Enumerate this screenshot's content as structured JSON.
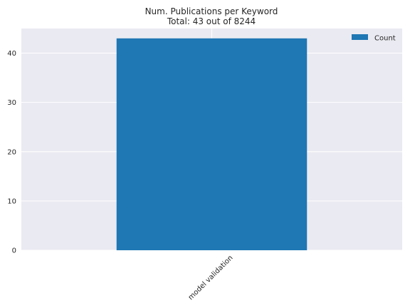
{
  "chart_data": {
    "type": "bar",
    "title": "Num. Publications per Keyword",
    "subtitle": "Total: 43 out of 8244",
    "xlabel": "",
    "ylabel": "",
    "categories": [
      "model validation"
    ],
    "series": [
      {
        "name": "Count",
        "values": [
          43
        ]
      }
    ],
    "ylim": [
      0,
      45
    ],
    "yticks": [
      0,
      10,
      20,
      30,
      40
    ],
    "grid": true,
    "legend_position": "top-right",
    "colors": {
      "bar": "#1f77b4",
      "plot_background": "#eaeaf2",
      "grid": "#ffffff"
    }
  }
}
